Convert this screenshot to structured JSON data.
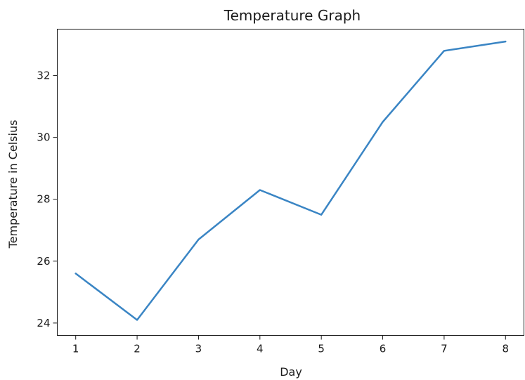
{
  "chart_data": {
    "type": "line",
    "title": "Temperature Graph",
    "xlabel": "Day",
    "ylabel": "Temperature in Celsius",
    "x": [
      1,
      2,
      3,
      4,
      5,
      6,
      7,
      8
    ],
    "series": [
      {
        "values": [
          25.6,
          24.1,
          26.7,
          28.3,
          27.5,
          30.5,
          32.8,
          33.1
        ],
        "color": "#3a85c4"
      }
    ],
    "xlim": [
      0.7,
      8.3
    ],
    "ylim": [
      23.6,
      33.5
    ],
    "xticks": [
      "1",
      "2",
      "3",
      "4",
      "5",
      "6",
      "7",
      "8"
    ],
    "yticks": [
      "24",
      "26",
      "28",
      "30",
      "32"
    ],
    "grid": false,
    "legend": "none"
  }
}
